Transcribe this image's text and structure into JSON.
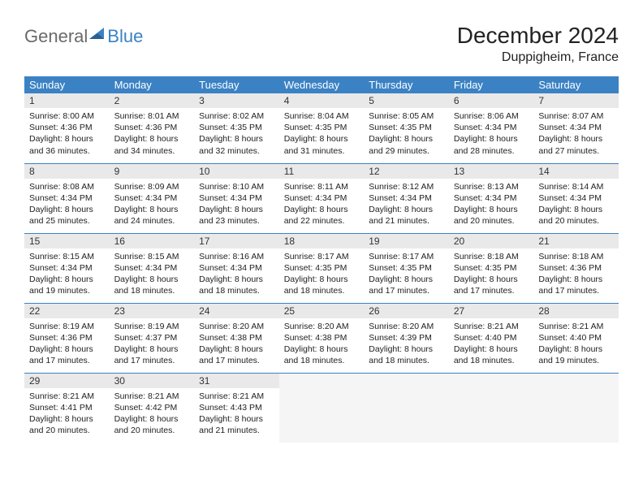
{
  "logo": {
    "general": "General",
    "blue": "Blue"
  },
  "title": "December 2024",
  "location": "Duppigheim, France",
  "colors": {
    "header_bg": "#3b82c4",
    "header_fg": "#ffffff",
    "daynum_bg": "#e9e9e9",
    "cell_border": "#3b82c4",
    "empty_bg": "#f5f5f5",
    "logo_gray": "#6a6a6a",
    "logo_blue": "#3b82c4"
  },
  "day_headers": [
    "Sunday",
    "Monday",
    "Tuesday",
    "Wednesday",
    "Thursday",
    "Friday",
    "Saturday"
  ],
  "weeks": [
    [
      {
        "n": "1",
        "sunrise": "8:00 AM",
        "sunset": "4:36 PM",
        "daylight": "8 hours and 36 minutes."
      },
      {
        "n": "2",
        "sunrise": "8:01 AM",
        "sunset": "4:36 PM",
        "daylight": "8 hours and 34 minutes."
      },
      {
        "n": "3",
        "sunrise": "8:02 AM",
        "sunset": "4:35 PM",
        "daylight": "8 hours and 32 minutes."
      },
      {
        "n": "4",
        "sunrise": "8:04 AM",
        "sunset": "4:35 PM",
        "daylight": "8 hours and 31 minutes."
      },
      {
        "n": "5",
        "sunrise": "8:05 AM",
        "sunset": "4:35 PM",
        "daylight": "8 hours and 29 minutes."
      },
      {
        "n": "6",
        "sunrise": "8:06 AM",
        "sunset": "4:34 PM",
        "daylight": "8 hours and 28 minutes."
      },
      {
        "n": "7",
        "sunrise": "8:07 AM",
        "sunset": "4:34 PM",
        "daylight": "8 hours and 27 minutes."
      }
    ],
    [
      {
        "n": "8",
        "sunrise": "8:08 AM",
        "sunset": "4:34 PM",
        "daylight": "8 hours and 25 minutes."
      },
      {
        "n": "9",
        "sunrise": "8:09 AM",
        "sunset": "4:34 PM",
        "daylight": "8 hours and 24 minutes."
      },
      {
        "n": "10",
        "sunrise": "8:10 AM",
        "sunset": "4:34 PM",
        "daylight": "8 hours and 23 minutes."
      },
      {
        "n": "11",
        "sunrise": "8:11 AM",
        "sunset": "4:34 PM",
        "daylight": "8 hours and 22 minutes."
      },
      {
        "n": "12",
        "sunrise": "8:12 AM",
        "sunset": "4:34 PM",
        "daylight": "8 hours and 21 minutes."
      },
      {
        "n": "13",
        "sunrise": "8:13 AM",
        "sunset": "4:34 PM",
        "daylight": "8 hours and 20 minutes."
      },
      {
        "n": "14",
        "sunrise": "8:14 AM",
        "sunset": "4:34 PM",
        "daylight": "8 hours and 20 minutes."
      }
    ],
    [
      {
        "n": "15",
        "sunrise": "8:15 AM",
        "sunset": "4:34 PM",
        "daylight": "8 hours and 19 minutes."
      },
      {
        "n": "16",
        "sunrise": "8:15 AM",
        "sunset": "4:34 PM",
        "daylight": "8 hours and 18 minutes."
      },
      {
        "n": "17",
        "sunrise": "8:16 AM",
        "sunset": "4:34 PM",
        "daylight": "8 hours and 18 minutes."
      },
      {
        "n": "18",
        "sunrise": "8:17 AM",
        "sunset": "4:35 PM",
        "daylight": "8 hours and 18 minutes."
      },
      {
        "n": "19",
        "sunrise": "8:17 AM",
        "sunset": "4:35 PM",
        "daylight": "8 hours and 17 minutes."
      },
      {
        "n": "20",
        "sunrise": "8:18 AM",
        "sunset": "4:35 PM",
        "daylight": "8 hours and 17 minutes."
      },
      {
        "n": "21",
        "sunrise": "8:18 AM",
        "sunset": "4:36 PM",
        "daylight": "8 hours and 17 minutes."
      }
    ],
    [
      {
        "n": "22",
        "sunrise": "8:19 AM",
        "sunset": "4:36 PM",
        "daylight": "8 hours and 17 minutes."
      },
      {
        "n": "23",
        "sunrise": "8:19 AM",
        "sunset": "4:37 PM",
        "daylight": "8 hours and 17 minutes."
      },
      {
        "n": "24",
        "sunrise": "8:20 AM",
        "sunset": "4:38 PM",
        "daylight": "8 hours and 17 minutes."
      },
      {
        "n": "25",
        "sunrise": "8:20 AM",
        "sunset": "4:38 PM",
        "daylight": "8 hours and 18 minutes."
      },
      {
        "n": "26",
        "sunrise": "8:20 AM",
        "sunset": "4:39 PM",
        "daylight": "8 hours and 18 minutes."
      },
      {
        "n": "27",
        "sunrise": "8:21 AM",
        "sunset": "4:40 PM",
        "daylight": "8 hours and 18 minutes."
      },
      {
        "n": "28",
        "sunrise": "8:21 AM",
        "sunset": "4:40 PM",
        "daylight": "8 hours and 19 minutes."
      }
    ],
    [
      {
        "n": "29",
        "sunrise": "8:21 AM",
        "sunset": "4:41 PM",
        "daylight": "8 hours and 20 minutes."
      },
      {
        "n": "30",
        "sunrise": "8:21 AM",
        "sunset": "4:42 PM",
        "daylight": "8 hours and 20 minutes."
      },
      {
        "n": "31",
        "sunrise": "8:21 AM",
        "sunset": "4:43 PM",
        "daylight": "8 hours and 21 minutes."
      },
      null,
      null,
      null,
      null
    ]
  ],
  "labels": {
    "sunrise": "Sunrise:",
    "sunset": "Sunset:",
    "daylight": "Daylight:"
  }
}
